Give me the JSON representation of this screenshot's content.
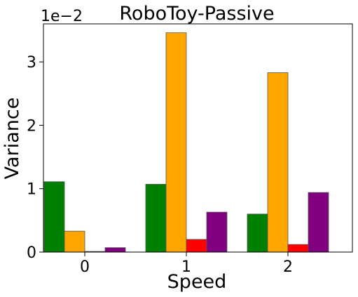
{
  "chart_data": {
    "type": "bar",
    "title": "RoboToy-Passive",
    "xlabel": "Speed",
    "ylabel": "Variance",
    "y_offset_label": "1e−2",
    "categories": [
      "0",
      "1",
      "2"
    ],
    "ylim": [
      0,
      0.036
    ],
    "yticks": [
      0,
      0.01,
      0.02,
      0.03
    ],
    "ytick_labels": [
      "0",
      "1",
      "2",
      "3"
    ],
    "grid": false,
    "legend": "none",
    "series": [
      {
        "color": "#008000",
        "values": [
          0.0111,
          0.0107,
          0.006
        ]
      },
      {
        "color": "#FFA500",
        "values": [
          0.0033,
          0.0346,
          0.0283
        ]
      },
      {
        "color": "#FF0000",
        "values": [
          0.0001,
          0.002,
          0.0012
        ]
      },
      {
        "color": "#800080",
        "values": [
          0.0007,
          0.0063,
          0.0094
        ]
      }
    ]
  }
}
